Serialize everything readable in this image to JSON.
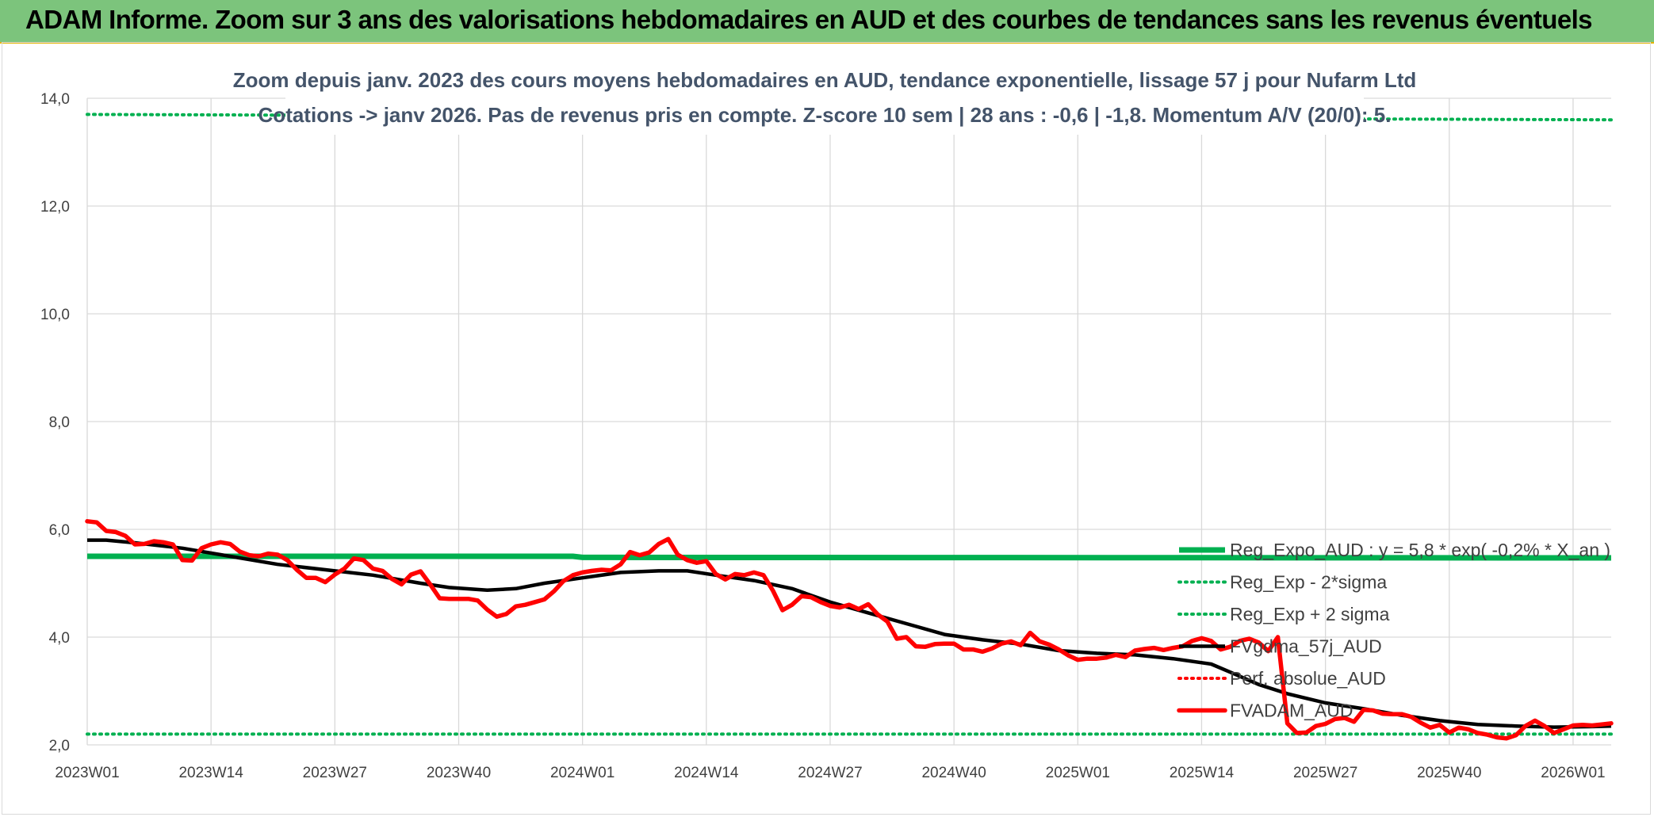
{
  "header": {
    "title": "ADAM Informe. Zoom sur 3 ans des valorisations hebdomadaires en AUD et des courbes de tendances sans les revenus éventuels"
  },
  "chart_data": {
    "type": "line",
    "title_lines": [
      "Zoom depuis janv. 2023 des cours moyens hebdomadaires en AUD, tendance exponentielle, lissage 57 j pour Nufarm Ltd",
      "Cotations -> janv 2026. Pas de revenus pris en compte. Z-score 10 sem | 28 ans : -0,6 | -1,8. Momentum A/V (20/0): 5."
    ],
    "ylim": [
      2.0,
      14.0
    ],
    "y_ticks": [
      "2,0",
      "4,0",
      "6,0",
      "8,0",
      "10,0",
      "12,0",
      "14,0"
    ],
    "x_ticks": [
      "2023W01",
      "2023W14",
      "2023W27",
      "2023W40",
      "2024W01",
      "2024W14",
      "2024W27",
      "2024W40",
      "2025W01",
      "2025W14",
      "2025W27",
      "2025W40",
      "2026W01"
    ],
    "x_tick_weeks": [
      0,
      13,
      26,
      39,
      52,
      65,
      78,
      91,
      104,
      117,
      130,
      143,
      156
    ],
    "n_weeks": 161,
    "grid": true,
    "legend_position": "right",
    "colors": {
      "green": "#00b050",
      "black": "#000000",
      "red": "#ff0000",
      "grid": "#d9d9d9"
    },
    "series": [
      {
        "name": "Reg_Expo_AUD : y = 5,8 * exp( -0,2% * X_an )",
        "style": "thick-green",
        "x": [
          0,
          51,
          52,
          160
        ],
        "y": [
          5.5,
          5.5,
          5.48,
          5.47
        ]
      },
      {
        "name": "Reg_Exp - 2*sigma",
        "style": "dotted-green",
        "x": [
          0,
          160
        ],
        "y": [
          2.2,
          2.2
        ]
      },
      {
        "name": "Reg_Exp + 2 sigma",
        "style": "dotted-green",
        "x": [
          0,
          160
        ],
        "y": [
          13.7,
          13.6
        ]
      },
      {
        "name": "FVgdma_57j_AUD",
        "style": "black",
        "x": [
          0,
          2,
          5,
          10,
          15,
          20,
          25,
          30,
          35,
          38,
          42,
          45,
          48,
          52,
          56,
          60,
          63,
          66,
          70,
          74,
          78,
          82,
          86,
          90,
          94,
          98,
          102,
          106,
          110,
          114,
          118,
          120,
          123,
          126,
          130,
          134,
          138,
          142,
          146,
          150,
          154,
          158,
          160
        ],
        "y": [
          5.8,
          5.8,
          5.75,
          5.65,
          5.5,
          5.35,
          5.25,
          5.15,
          5.0,
          4.92,
          4.87,
          4.9,
          5.0,
          5.1,
          5.2,
          5.23,
          5.23,
          5.15,
          5.05,
          4.9,
          4.65,
          4.45,
          4.25,
          4.05,
          3.95,
          3.87,
          3.75,
          3.7,
          3.67,
          3.6,
          3.5,
          3.35,
          3.12,
          2.95,
          2.78,
          2.67,
          2.55,
          2.45,
          2.38,
          2.35,
          2.33,
          2.34,
          2.35
        ]
      },
      {
        "name": "Perf. absolue_AUD",
        "style": "dotted-red",
        "x": [],
        "y": []
      },
      {
        "name": "FVADAM_AUD",
        "style": "thick-red",
        "x": [
          0,
          1,
          2,
          3,
          4,
          5,
          6,
          7,
          8,
          9,
          10,
          11,
          12,
          13,
          14,
          15,
          16,
          17,
          18,
          19,
          20,
          21,
          22,
          23,
          24,
          25,
          26,
          27,
          28,
          29,
          30,
          31,
          32,
          33,
          34,
          35,
          36,
          37,
          38,
          39,
          40,
          41,
          42,
          43,
          44,
          45,
          46,
          47,
          48,
          49,
          50,
          51,
          52,
          53,
          54,
          55,
          56,
          57,
          58,
          59,
          60,
          61,
          62,
          63,
          64,
          65,
          66,
          67,
          68,
          69,
          70,
          71,
          72,
          73,
          74,
          75,
          76,
          77,
          78,
          79,
          80,
          81,
          82,
          83,
          84,
          85,
          86,
          87,
          88,
          89,
          90,
          91,
          92,
          93,
          94,
          95,
          96,
          97,
          98,
          99,
          100,
          101,
          102,
          103,
          104,
          105,
          106,
          107,
          108,
          109,
          110,
          111,
          112,
          113,
          114,
          115,
          116,
          117,
          118,
          119,
          120,
          121,
          122,
          123,
          124,
          125,
          126,
          127,
          128,
          129,
          130,
          131,
          132,
          133,
          134,
          135,
          136,
          137,
          138,
          139,
          140,
          141,
          142,
          143,
          144,
          145,
          146,
          147,
          148,
          149,
          150,
          151,
          152,
          153,
          154,
          155,
          156,
          157,
          158,
          159,
          160
        ],
        "y": [
          6.15,
          6.13,
          5.97,
          5.95,
          5.88,
          5.72,
          5.73,
          5.78,
          5.76,
          5.72,
          5.43,
          5.42,
          5.65,
          5.72,
          5.76,
          5.73,
          5.59,
          5.52,
          5.5,
          5.55,
          5.53,
          5.43,
          5.25,
          5.1,
          5.1,
          5.02,
          5.16,
          5.27,
          5.46,
          5.43,
          5.27,
          5.23,
          5.08,
          4.98,
          5.16,
          5.22,
          4.98,
          4.72,
          4.71,
          4.71,
          4.71,
          4.68,
          4.51,
          4.38,
          4.43,
          4.57,
          4.6,
          4.65,
          4.7,
          4.85,
          5.04,
          5.15,
          5.2,
          5.23,
          5.25,
          5.24,
          5.35,
          5.58,
          5.52,
          5.57,
          5.73,
          5.82,
          5.53,
          5.43,
          5.38,
          5.41,
          5.17,
          5.07,
          5.17,
          5.15,
          5.2,
          5.15,
          4.86,
          4.5,
          4.6,
          4.76,
          4.74,
          4.65,
          4.58,
          4.55,
          4.6,
          4.52,
          4.61,
          4.42,
          4.29,
          3.97,
          4.0,
          3.83,
          3.82,
          3.87,
          3.88,
          3.88,
          3.77,
          3.77,
          3.73,
          3.79,
          3.88,
          3.92,
          3.85,
          4.08,
          3.92,
          3.86,
          3.77,
          3.66,
          3.58,
          3.6,
          3.6,
          3.62,
          3.67,
          3.63,
          3.75,
          3.78,
          3.8,
          3.76,
          3.8,
          3.83,
          3.93,
          3.98,
          3.93,
          3.77,
          3.82,
          3.93,
          3.97,
          3.9,
          3.74,
          4.0,
          2.4,
          2.22,
          2.23,
          2.35,
          2.39,
          2.48,
          2.5,
          2.43,
          2.65,
          2.64,
          2.58,
          2.57,
          2.57,
          2.52,
          2.41,
          2.32,
          2.37,
          2.23,
          2.32,
          2.29,
          2.22,
          2.19,
          2.14,
          2.12,
          2.18,
          2.35,
          2.45,
          2.35,
          2.22,
          2.29,
          2.36,
          2.37,
          2.36,
          2.38,
          2.4
        ]
      }
    ]
  }
}
